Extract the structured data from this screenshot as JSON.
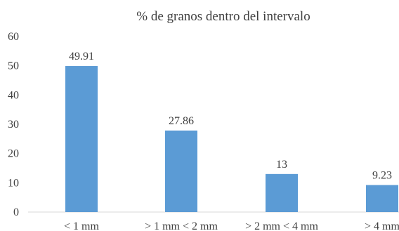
{
  "chart_data": {
    "type": "bar",
    "title": "% de granos dentro del intervalo",
    "categories": [
      "< 1 mm",
      "> 1 mm < 2 mm",
      "> 2 mm < 4 mm",
      "> 4 mm"
    ],
    "values": [
      49.91,
      27.86,
      13,
      9.23
    ],
    "data_labels": [
      "49.91",
      "27.86",
      "13",
      "9.23"
    ],
    "xlabel": "",
    "ylabel": "",
    "ylim": [
      0,
      60
    ],
    "yticks": [
      "0",
      "10",
      "20",
      "30",
      "40",
      "50",
      "60"
    ],
    "grid": false,
    "legend": "none",
    "bar_color": "#5b9bd5",
    "axis_color": "#d9d9d9"
  }
}
